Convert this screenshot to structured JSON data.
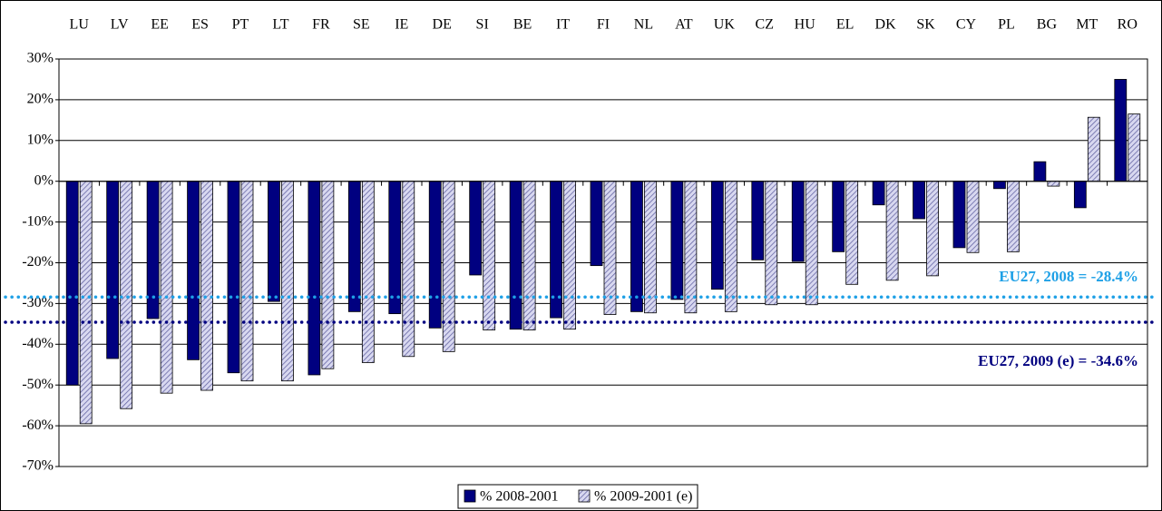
{
  "chart_data": {
    "type": "bar",
    "categories": [
      "LU",
      "LV",
      "EE",
      "ES",
      "PT",
      "LT",
      "FR",
      "SE",
      "IE",
      "DE",
      "SI",
      "BE",
      "IT",
      "FI",
      "NL",
      "AT",
      "UK",
      "CZ",
      "HU",
      "EL",
      "DK",
      "SK",
      "CY",
      "PL",
      "BG",
      "MT",
      "RO"
    ],
    "series": [
      {
        "name": "% 2008-2001",
        "color": "#000080",
        "values": [
          -50,
          -43.5,
          -33.7,
          -43.8,
          -47,
          -29.5,
          -47.5,
          -32,
          -32.5,
          -36,
          -23,
          -36.3,
          -33.5,
          -20.7,
          -32,
          -29,
          -26.5,
          -19.3,
          -19.7,
          -17.3,
          -5.8,
          -9.2,
          -16.3,
          -1.8,
          4.8,
          -6.5,
          25
        ]
      },
      {
        "name": "% 2009-2001 (e)",
        "color": "#c8c8e8",
        "values": [
          -59.5,
          -55.8,
          -52,
          -51.3,
          -49,
          -49,
          -46,
          -44.5,
          -43,
          -41.8,
          -36.5,
          -36.5,
          -36.3,
          -32.7,
          -32.3,
          -32.3,
          -32,
          -30.3,
          -30.3,
          -25.3,
          -24.3,
          -23.2,
          -17.5,
          -17.3,
          -1.2,
          15.7,
          16.5
        ]
      }
    ],
    "ylim": [
      -70,
      30
    ],
    "yticks": [
      {
        "value": -70,
        "label": "-70%"
      },
      {
        "value": -60,
        "label": "-60%"
      },
      {
        "value": -50,
        "label": "-50%"
      },
      {
        "value": -40,
        "label": "-40%"
      },
      {
        "value": -30,
        "label": "-30%"
      },
      {
        "value": -20,
        "label": "-20%"
      },
      {
        "value": -10,
        "label": "-10%"
      },
      {
        "value": 0,
        "label": "0%"
      },
      {
        "value": 10,
        "label": "10%"
      },
      {
        "value": 20,
        "label": "20%"
      },
      {
        "value": 30,
        "label": "30%"
      }
    ],
    "grid": true,
    "legend": "bottom",
    "reference_lines": [
      {
        "value": -28.4,
        "label": "EU27, 2008 = -28.4%",
        "color": "#1ea0e6"
      },
      {
        "value": -34.6,
        "label": "EU27, 2009 (e) = -34.6%",
        "color": "#000080"
      }
    ]
  }
}
